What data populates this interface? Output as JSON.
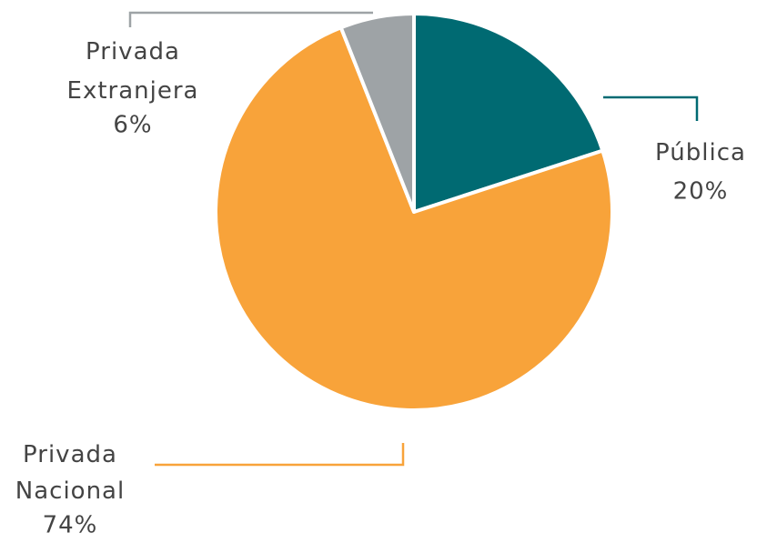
{
  "chart_data": {
    "type": "pie",
    "categories": [
      "Pública",
      "Privada Nacional",
      "Privada Extranjera"
    ],
    "values": [
      20,
      74,
      6
    ],
    "value_labels": [
      "20%",
      "74%",
      "6%"
    ],
    "colors": [
      "#006a72",
      "#f8a33a",
      "#9ea3a6"
    ]
  }
}
